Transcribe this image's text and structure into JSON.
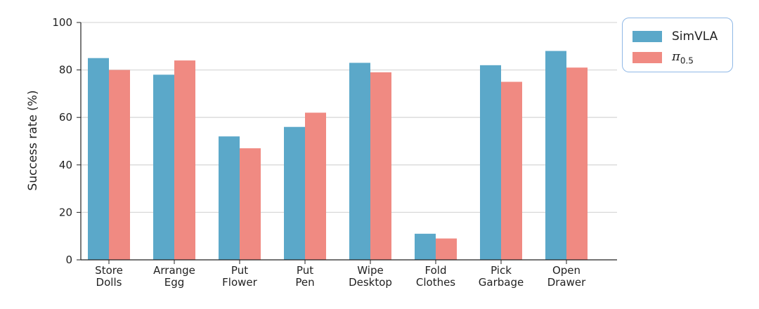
{
  "chart_data": {
    "type": "bar",
    "title": "",
    "xlabel": "",
    "ylabel": "Success rate (%)",
    "ylim": [
      0,
      100
    ],
    "yticks": [
      0,
      20,
      40,
      60,
      80,
      100
    ],
    "categories": [
      [
        "Store",
        "Dolls"
      ],
      [
        "Arrange",
        "Egg"
      ],
      [
        "Put",
        "Flower"
      ],
      [
        "Put",
        "Pen"
      ],
      [
        "Wipe",
        "Desktop"
      ],
      [
        "Fold",
        "Clothes"
      ],
      [
        "Pick",
        "Garbage"
      ],
      [
        "Open",
        "Drawer"
      ]
    ],
    "series": [
      {
        "name": "SimVLA",
        "color": "#5ba8c9",
        "values": [
          85,
          78,
          52,
          56,
          83,
          11,
          82,
          88
        ]
      },
      {
        "name": "π0.5",
        "color": "#f08a82",
        "values": [
          80,
          84,
          47,
          62,
          79,
          9,
          75,
          81
        ]
      }
    ],
    "grid": true,
    "legend_position": "top-right"
  },
  "legend": {
    "series1_label": "SimVLA",
    "series2_symbol": "π",
    "series2_subscript": "0.5"
  }
}
